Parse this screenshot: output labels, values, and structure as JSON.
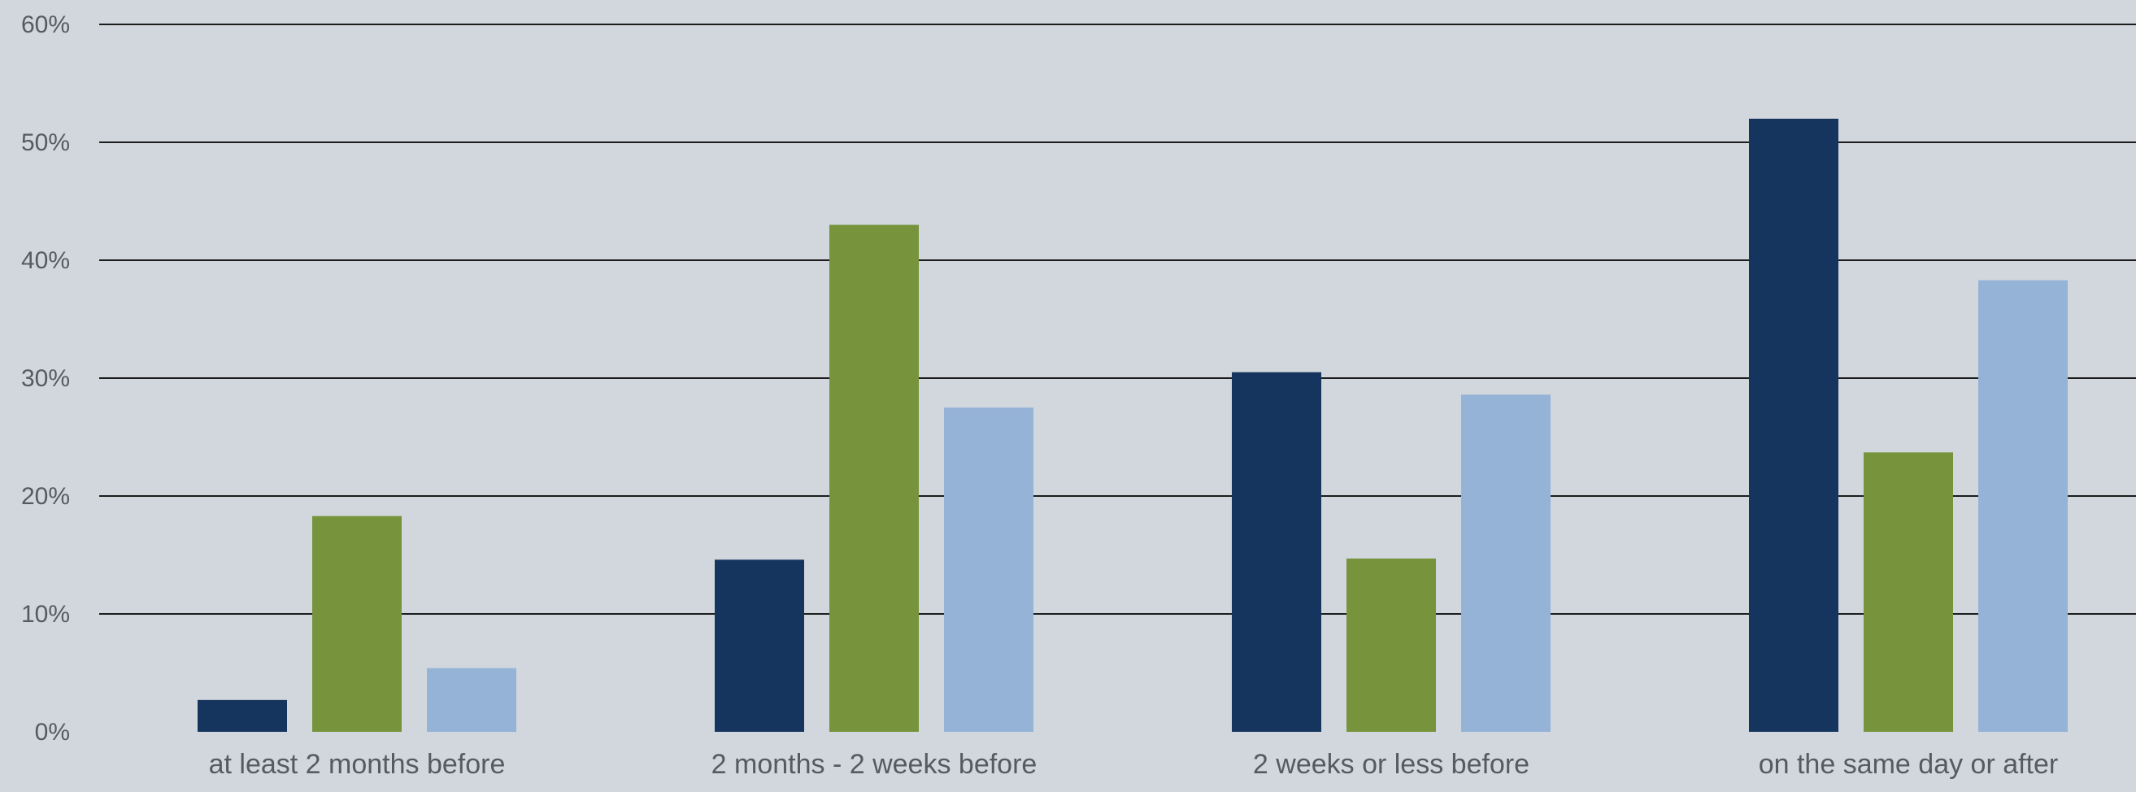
{
  "chart_data": {
    "type": "bar",
    "title": "",
    "xlabel": "",
    "ylabel": "",
    "ylim": [
      0,
      60
    ],
    "yticks": [
      0,
      10,
      20,
      30,
      40,
      50,
      60
    ],
    "ytick_labels": [
      "0%",
      "10%",
      "20%",
      "30%",
      "40%",
      "50%",
      "60%"
    ],
    "grid": true,
    "legend": "none",
    "categories": [
      "at least 2 months before",
      "2 months - 2 weeks before",
      "2 weeks or less before",
      "on the same day or after"
    ],
    "series": [
      {
        "color": "#16355e",
        "values": [
          2.7,
          14.6,
          30.5,
          52.0
        ]
      },
      {
        "color": "#77933c",
        "values": [
          18.3,
          43.0,
          14.7,
          23.7
        ]
      },
      {
        "color": "#95b3d7",
        "values": [
          5.4,
          27.5,
          28.6,
          38.3
        ]
      }
    ]
  }
}
